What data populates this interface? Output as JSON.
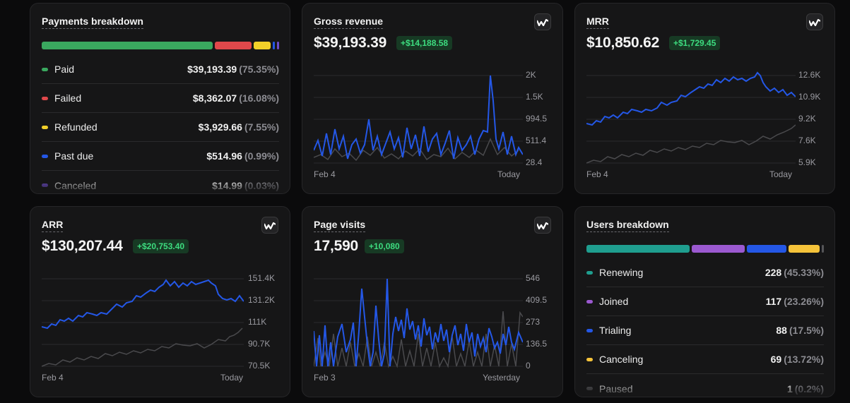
{
  "colors": {
    "green": "#3aa85f",
    "red": "#e0484b",
    "yellow": "#f2d029",
    "blue": "#2457e6",
    "purple": "#6d4cc9",
    "teal": "#1f9e8f",
    "violet": "#9b59d0",
    "gold": "#f5c33a",
    "grey": "#555558",
    "delta_bg": "#173a24",
    "delta_fg": "#3ddc7f"
  },
  "payments": {
    "title": "Payments breakdown",
    "items": [
      {
        "label": "Paid",
        "amount": "$39,193.39",
        "pct": "(75.35%)",
        "color": "#3aa85f",
        "share": 0.7535
      },
      {
        "label": "Failed",
        "amount": "$8,362.07",
        "pct": "(16.08%)",
        "color": "#e0484b",
        "share": 0.1608
      },
      {
        "label": "Refunded",
        "amount": "$3,929.66",
        "pct": "(7.55%)",
        "color": "#f2d029",
        "share": 0.0755
      },
      {
        "label": "Past due",
        "amount": "$514.96",
        "pct": "(0.99%)",
        "color": "#2457e6",
        "share": 0.0099
      },
      {
        "label": "Canceled",
        "amount": "$14.99",
        "pct": "(0.03%)",
        "color": "#6d4cc9",
        "share": 0.0003
      }
    ]
  },
  "gross": {
    "title": "Gross revenue",
    "value": "$39,193.39",
    "delta": "+$14,188.58",
    "y_ticks": [
      "2K",
      "1.5K",
      "994.5",
      "511.4",
      "28.4"
    ],
    "x_start": "Feb 4",
    "x_end": "Today"
  },
  "mrr": {
    "title": "MRR",
    "value": "$10,850.62",
    "delta": "+$1,729.45",
    "y_ticks": [
      "12.6K",
      "10.9K",
      "9.2K",
      "7.6K",
      "5.9K"
    ],
    "x_start": "Feb 4",
    "x_end": "Today"
  },
  "arr": {
    "title": "ARR",
    "value": "$130,207.44",
    "delta": "+$20,753.40",
    "y_ticks": [
      "151.4K",
      "131.2K",
      "111K",
      "90.7K",
      "70.5K"
    ],
    "x_start": "Feb 4",
    "x_end": "Today"
  },
  "visits": {
    "title": "Page visits",
    "value": "17,590",
    "delta": "+10,080",
    "y_ticks": [
      "546",
      "409.5",
      "273",
      "136.5",
      "0"
    ],
    "x_start": "Feb 3",
    "x_end": "Yesterday"
  },
  "users": {
    "title": "Users breakdown",
    "items": [
      {
        "label": "Renewing",
        "count": "228",
        "pct": "(45.33%)",
        "color": "#1f9e8f",
        "share": 0.4533
      },
      {
        "label": "Joined",
        "count": "117",
        "pct": "(23.26%)",
        "color": "#9b59d0",
        "share": 0.2326
      },
      {
        "label": "Trialing",
        "count": "88",
        "pct": "(17.5%)",
        "color": "#2457e6",
        "share": 0.175
      },
      {
        "label": "Canceling",
        "count": "69",
        "pct": "(13.72%)",
        "color": "#f5c33a",
        "share": 0.1372
      },
      {
        "label": "Paused",
        "count": "1",
        "pct": "(0.2%)",
        "color": "#555558",
        "share": 0.002
      }
    ]
  }
}
